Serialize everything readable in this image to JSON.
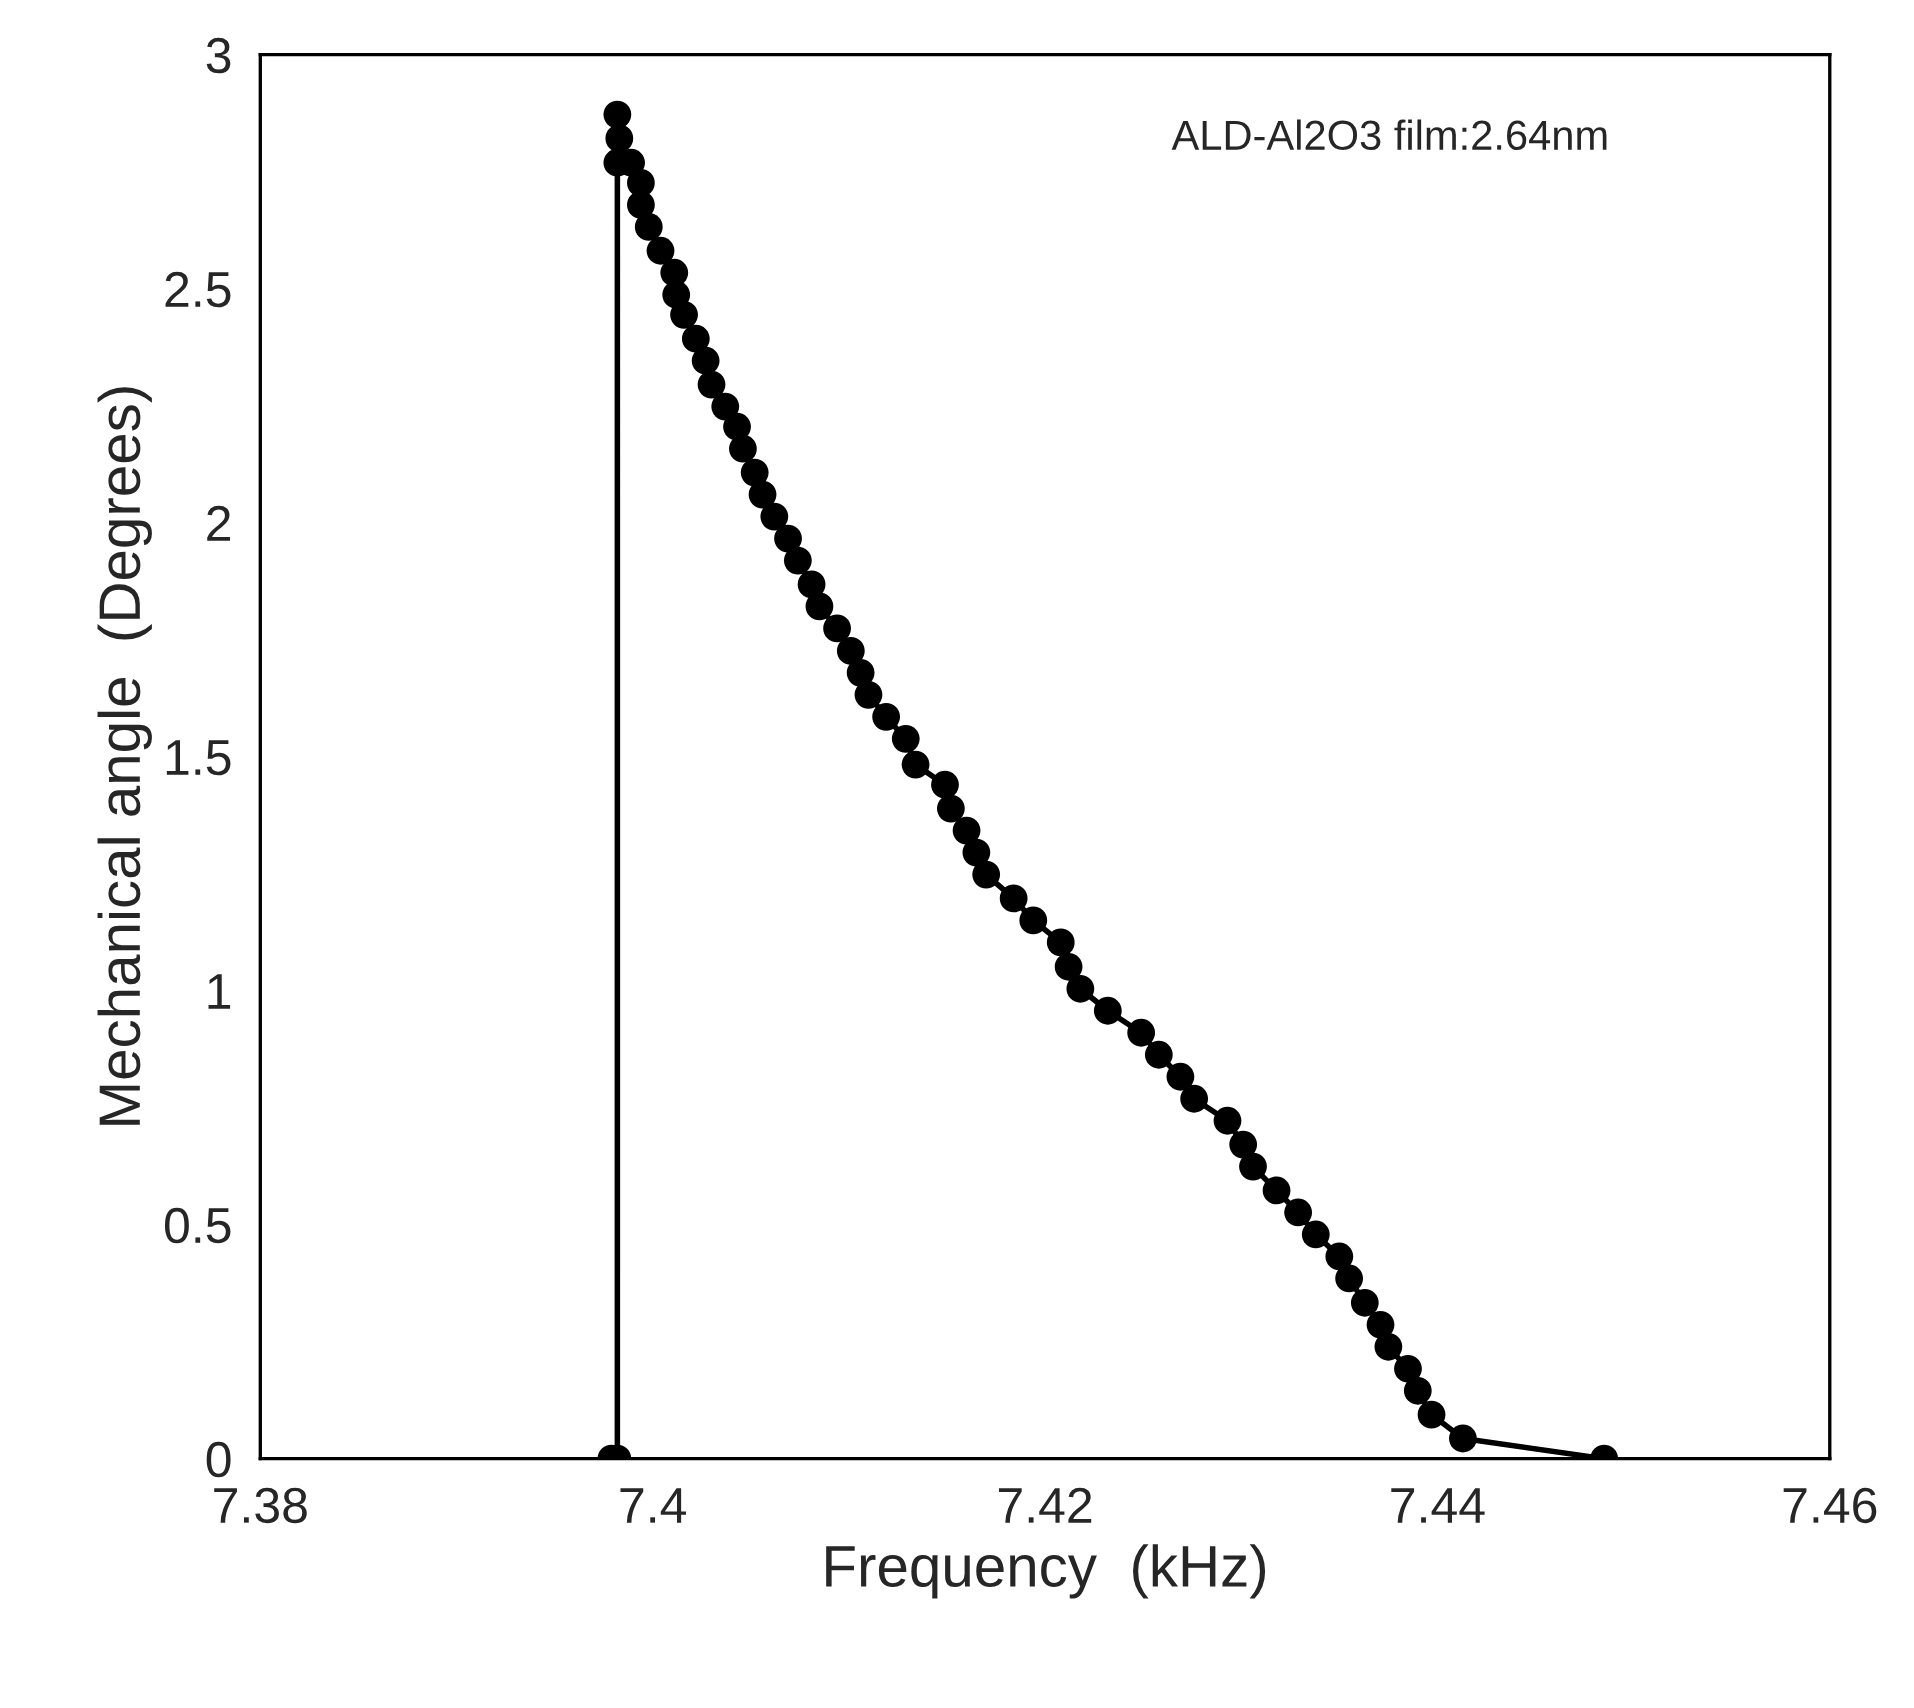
{
  "chart_data": {
    "type": "line",
    "xlabel": "Frequency  (kHz)",
    "ylabel": "Mechanical angle  (Degrees)",
    "annotations": [
      "ALD-Al2O3 film:2.64nm"
    ],
    "xlim": [
      7.38,
      7.46
    ],
    "xticks": [
      7.38,
      7.4,
      7.42,
      7.44,
      7.46
    ],
    "ylim": [
      0,
      3
    ],
    "yticks": [
      0,
      0.5,
      1,
      1.5,
      2,
      2.5,
      3
    ],
    "grid": false,
    "marker": "circle",
    "line_style": "solid",
    "series": [
      {
        "color": "#000000",
        "x": [
          7.3979,
          7.3982,
          7.3982,
          7.3983,
          7.3982,
          7.3989,
          7.3994,
          7.3994,
          7.3998,
          7.4004,
          7.4011,
          7.4012,
          7.4016,
          7.4022,
          7.4027,
          7.403,
          7.4037,
          7.4043,
          7.4046,
          7.4052,
          7.4056,
          7.4062,
          7.4069,
          7.4074,
          7.4081,
          7.4085,
          7.4094,
          7.4101,
          7.4106,
          7.411,
          7.4119,
          7.4129,
          7.4134,
          7.4149,
          7.4152,
          7.416,
          7.4165,
          7.417,
          7.4184,
          7.4194,
          7.4208,
          7.4212,
          7.4218,
          7.4232,
          7.4249,
          7.4258,
          7.4269,
          7.4276,
          7.4293,
          7.4301,
          7.4306,
          7.4318,
          7.4329,
          7.4338,
          7.435,
          7.4355,
          7.4363,
          7.4371,
          7.4375,
          7.4385,
          7.439,
          7.4397,
          7.4413,
          7.4485
        ],
        "values": [
          0,
          0,
          2.872,
          2.821,
          2.769,
          2.769,
          2.726,
          2.679,
          2.632,
          2.581,
          2.534,
          2.487,
          2.444,
          2.393,
          2.346,
          2.295,
          2.248,
          2.205,
          2.158,
          2.107,
          2.06,
          2.013,
          1.966,
          1.919,
          1.868,
          1.821,
          1.774,
          1.726,
          1.679,
          1.632,
          1.585,
          1.538,
          1.483,
          1.44,
          1.389,
          1.342,
          1.295,
          1.248,
          1.197,
          1.15,
          1.103,
          1.051,
          1.004,
          0.957,
          0.91,
          0.863,
          0.816,
          0.769,
          0.722,
          0.671,
          0.624,
          0.573,
          0.526,
          0.479,
          0.432,
          0.385,
          0.333,
          0.286,
          0.239,
          0.192,
          0.145,
          0.094,
          0.043,
          0
        ]
      }
    ]
  }
}
